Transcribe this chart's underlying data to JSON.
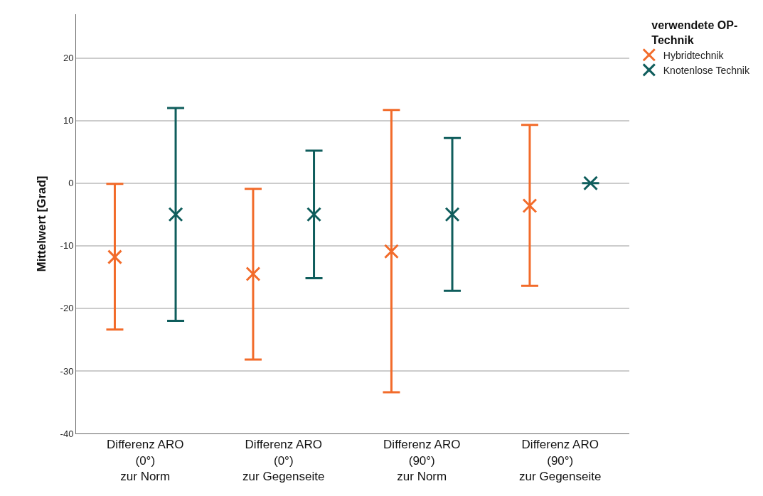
{
  "chart_data": {
    "type": "scatter",
    "ylabel": "Mittelwert [Grad]",
    "legend_title": "verwendete OP-Technik",
    "categories": [
      "Differenz ARO\n(0°)\nzur Norm",
      "Differenz ARO\n(0°)\nzur Gegenseite",
      "Differenz ARO\n(90°)\nzur Norm",
      "Differenz ARO\n(90°)\nzur Gegenseite"
    ],
    "series": [
      {
        "name": "Hybridtechnik",
        "color": "#f26b2a",
        "values": [
          -11.8,
          -14.5,
          -10.9,
          -3.6
        ],
        "errors": [
          [
            -23.4,
            -0.1
          ],
          [
            -28.2,
            -0.9
          ],
          [
            -33.4,
            11.7
          ],
          [
            -16.4,
            9.3
          ]
        ]
      },
      {
        "name": "Knotenlose Technik",
        "color": "#0f5d5c",
        "values": [
          -5.0,
          -5.0,
          -5.0,
          0.0
        ],
        "errors": [
          [
            -22.0,
            12.0
          ],
          [
            -15.2,
            5.2
          ],
          [
            -17.2,
            7.2
          ],
          null
        ]
      }
    ],
    "ylim": [
      -40,
      27
    ],
    "yticks": [
      -40,
      -30,
      -20,
      -10,
      0,
      10,
      20
    ],
    "grid": "y",
    "legend": "top right",
    "marker": "cross"
  }
}
